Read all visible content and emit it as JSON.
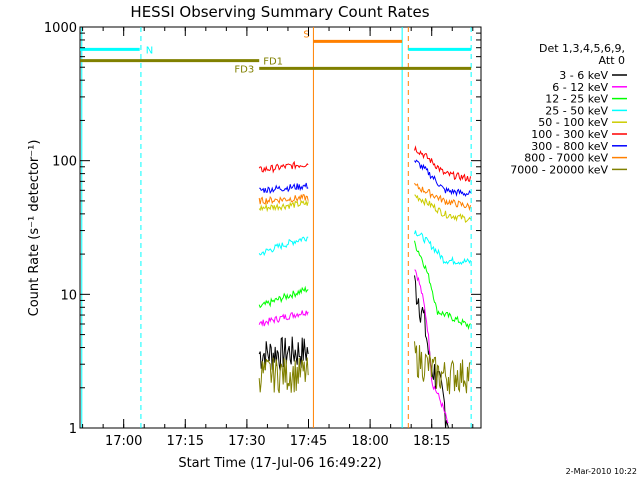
{
  "chart_data": {
    "type": "line",
    "title": "HESSI Observing Summary Count Rates",
    "xlabel": "Start Time (17-Jul-06 16:49:22)",
    "ylabel": "Count Rate (s⁻¹ detector⁻¹)",
    "y_scale": "log",
    "ylim": [
      1,
      1000
    ],
    "y_ticks": [
      {
        "v": 1,
        "label": "1"
      },
      {
        "v": 10,
        "label": "10"
      },
      {
        "v": 100,
        "label": "100"
      },
      {
        "v": 1000,
        "label": "1000"
      }
    ],
    "xlim": [
      "16:49:22",
      "18:27:00"
    ],
    "x_ticks": [
      {
        "t": "17:00",
        "label": "17:00"
      },
      {
        "t": "17:15",
        "label": "17:15"
      },
      {
        "t": "17:30",
        "label": "17:30"
      },
      {
        "t": "17:45",
        "label": "17:45"
      },
      {
        "t": "18:00",
        "label": "18:00"
      },
      {
        "t": "18:15",
        "label": "18:15"
      }
    ],
    "legend_title": [
      "Det 1,3,4,5,6,9,",
      "Att 0"
    ],
    "legend_placement": "right",
    "series": [
      {
        "name": "3 - 6 keV",
        "color": "#000000",
        "seg1": [
          [
            17.55,
            3.6
          ],
          [
            17.75,
            3.8
          ]
        ],
        "seg2": [
          [
            18.18,
            12
          ],
          [
            18.24,
            3.2
          ],
          [
            18.32,
            1.0
          ]
        ]
      },
      {
        "name": "6 - 12 keV",
        "color": "#ff00ff",
        "seg1": [
          [
            17.55,
            6.0
          ],
          [
            17.75,
            7.5
          ]
        ],
        "seg2": [
          [
            18.18,
            16
          ],
          [
            18.25,
            2.2
          ],
          [
            18.32,
            1.0
          ]
        ]
      },
      {
        "name": "12 - 25 keV",
        "color": "#00ff00",
        "seg1": [
          [
            17.55,
            8.0
          ],
          [
            17.75,
            11
          ]
        ],
        "seg2": [
          [
            18.18,
            24
          ],
          [
            18.27,
            7.5
          ],
          [
            18.41,
            5.7
          ]
        ]
      },
      {
        "name": "25 - 50 keV",
        "color": "#00ffff",
        "seg1": [
          [
            17.55,
            20
          ],
          [
            17.75,
            27
          ]
        ],
        "seg2": [
          [
            18.18,
            30
          ],
          [
            18.3,
            18
          ],
          [
            18.41,
            17.5
          ]
        ]
      },
      {
        "name": "50 - 100 keV",
        "color": "#cccc00",
        "seg1": [
          [
            17.55,
            44
          ],
          [
            17.75,
            48
          ]
        ],
        "seg2": [
          [
            18.18,
            55
          ],
          [
            18.3,
            40
          ],
          [
            18.41,
            36
          ]
        ]
      },
      {
        "name": "100 - 300 keV",
        "color": "#ff0000",
        "seg1": [
          [
            17.55,
            85
          ],
          [
            17.75,
            95
          ]
        ],
        "seg2": [
          [
            18.18,
            125
          ],
          [
            18.3,
            80
          ],
          [
            18.41,
            73
          ]
        ]
      },
      {
        "name": "300 - 800 keV",
        "color": "#0000ff",
        "seg1": [
          [
            17.55,
            60
          ],
          [
            17.75,
            65
          ]
        ],
        "seg2": [
          [
            18.18,
            100
          ],
          [
            18.3,
            60
          ],
          [
            18.41,
            56
          ]
        ]
      },
      {
        "name": "800 - 7000 keV",
        "color": "#ff8000",
        "seg1": [
          [
            17.55,
            50
          ],
          [
            17.75,
            53
          ]
        ],
        "seg2": [
          [
            18.18,
            65
          ],
          [
            18.3,
            50
          ],
          [
            18.41,
            45
          ]
        ]
      },
      {
        "name": "7000 - 20000 keV",
        "color": "#808000",
        "seg1": [
          [
            17.55,
            2.6
          ],
          [
            17.75,
            2.6
          ]
        ],
        "seg2": [
          [
            18.18,
            3.5
          ],
          [
            18.28,
            2.5
          ],
          [
            18.41,
            2.6
          ]
        ]
      }
    ],
    "annotations": [
      {
        "label": "N",
        "color": "#00ffff",
        "x0": 16.823,
        "x1": 17.065,
        "y": 680
      },
      {
        "label": "N",
        "color": "#00ffff",
        "x0": 18.155,
        "x1": 18.41,
        "y": 680
      },
      {
        "label": "S",
        "color": "#ff8000",
        "x0": 17.77,
        "x1": 18.13,
        "y": 780
      },
      {
        "label": "FD1",
        "color": "#808000",
        "x0": 16.823,
        "x1": 17.55,
        "y": 560
      },
      {
        "label": "FD3",
        "color": "#808000",
        "x0": 17.55,
        "x1": 18.41,
        "y": 490
      }
    ],
    "vlines": [
      {
        "x": 16.83,
        "color": "#00ffff",
        "style": "solid"
      },
      {
        "x": 17.07,
        "color": "#00ffff",
        "style": "dashed"
      },
      {
        "x": 17.77,
        "color": "#ff8000",
        "style": "solid"
      },
      {
        "x": 18.13,
        "color": "#00ffff",
        "style": "solid"
      },
      {
        "x": 18.155,
        "color": "#ff8000",
        "style": "dashed"
      },
      {
        "x": 18.41,
        "color": "#00ffff",
        "style": "dashed"
      }
    ]
  },
  "footer": {
    "date": "2-Mar-2010 10:22"
  }
}
